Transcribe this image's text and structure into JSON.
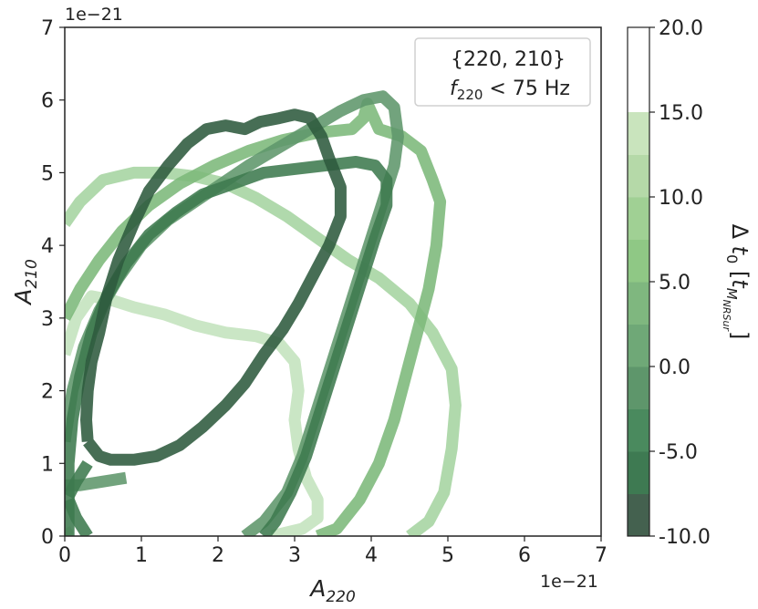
{
  "chart_data": {
    "type": "line",
    "x_label_main": "A",
    "x_label_sub": "220",
    "y_label_main": "A",
    "y_label_sub": "210",
    "x_offset_label": "1e−21",
    "y_offset_label": "1e−21",
    "xlim": [
      0,
      7
    ],
    "ylim": [
      0,
      7
    ],
    "x_ticks": [
      "0",
      "1",
      "2",
      "3",
      "4",
      "5",
      "6",
      "7"
    ],
    "y_ticks": [
      "0",
      "1",
      "2",
      "3",
      "4",
      "5",
      "6",
      "7"
    ],
    "grid": false,
    "annotation": {
      "line1": "{220, 210}",
      "line2_var_main": "f",
      "line2_var_sub": "220",
      "line2_rest": " < 75 Hz",
      "placement": "top-right"
    },
    "colorbar": {
      "label_prefix": "Δ ",
      "label_var_main": "t",
      "label_var_sub": "0",
      "label_unit_main": "t",
      "label_unit_sub": "M",
      "label_unit_subsub": "NRSur",
      "tick_labels": [
        "-10.0",
        "-5.0",
        "0.0",
        "5.0",
        "10.0",
        "15.0",
        "20.0"
      ],
      "tick_values": [
        -10,
        -5,
        0,
        5,
        10,
        15,
        20
      ],
      "levels": [
        -10,
        -7.5,
        -5,
        -2.5,
        0,
        2.5,
        5,
        7.5,
        10,
        12.5,
        15,
        17.5,
        20
      ],
      "colors": [
        "#44614f",
        "#3e7a52",
        "#4a8a5e",
        "#5e966b",
        "#6fa877",
        "#7fb77f",
        "#8fc885",
        "#a0d094",
        "#b5d9a8",
        "#c9e4bd"
      ]
    },
    "series": [
      {
        "delta_t0": -10,
        "color": "#2d5a3d",
        "points": [
          [
            0.3,
            1.3
          ],
          [
            0.28,
            1.6
          ],
          [
            0.3,
            2.0
          ],
          [
            0.35,
            2.4
          ],
          [
            0.45,
            2.8
          ],
          [
            0.55,
            3.3
          ],
          [
            0.7,
            3.8
          ],
          [
            0.9,
            4.3
          ],
          [
            1.1,
            4.75
          ],
          [
            1.35,
            5.1
          ],
          [
            1.6,
            5.4
          ],
          [
            1.85,
            5.6
          ],
          [
            2.1,
            5.65
          ],
          [
            2.35,
            5.6
          ],
          [
            2.55,
            5.7
          ],
          [
            2.8,
            5.75
          ],
          [
            3.0,
            5.8
          ],
          [
            3.2,
            5.75
          ],
          [
            3.35,
            5.5
          ],
          [
            3.45,
            5.2
          ],
          [
            3.6,
            4.8
          ],
          [
            3.6,
            4.4
          ],
          [
            3.45,
            4.0
          ],
          [
            3.25,
            3.6
          ],
          [
            3.05,
            3.2
          ],
          [
            2.85,
            2.85
          ],
          [
            2.6,
            2.5
          ],
          [
            2.35,
            2.1
          ],
          [
            2.1,
            1.8
          ],
          [
            1.8,
            1.5
          ],
          [
            1.5,
            1.25
          ],
          [
            1.2,
            1.1
          ],
          [
            0.9,
            1.05
          ],
          [
            0.6,
            1.05
          ],
          [
            0.45,
            1.1
          ],
          [
            0.3,
            1.3
          ]
        ]
      },
      {
        "delta_t0": -5,
        "color": "#3e7a4f",
        "points": [
          [
            0.05,
            0.0
          ],
          [
            0.05,
            0.5
          ],
          [
            0.05,
            1.0
          ],
          [
            0.1,
            1.6
          ],
          [
            0.2,
            2.2
          ],
          [
            0.35,
            2.8
          ],
          [
            0.55,
            3.3
          ],
          [
            0.8,
            3.75
          ],
          [
            1.1,
            4.15
          ],
          [
            1.45,
            4.45
          ],
          [
            1.8,
            4.7
          ],
          [
            2.2,
            4.85
          ],
          [
            2.6,
            5.0
          ],
          [
            3.0,
            5.05
          ],
          [
            3.4,
            5.1
          ],
          [
            3.8,
            5.15
          ],
          [
            4.05,
            5.1
          ],
          [
            4.2,
            4.9
          ],
          [
            4.2,
            4.55
          ],
          [
            4.05,
            4.1
          ],
          [
            3.9,
            3.6
          ],
          [
            3.75,
            3.1
          ],
          [
            3.6,
            2.6
          ],
          [
            3.45,
            2.1
          ],
          [
            3.3,
            1.6
          ],
          [
            3.15,
            1.1
          ],
          [
            2.95,
            0.6
          ],
          [
            2.75,
            0.2
          ],
          [
            2.6,
            0.0
          ]
        ]
      },
      {
        "delta_t0": -5,
        "color": "#3e7a4f",
        "points": [
          [
            0.05,
            0.55
          ],
          [
            0.15,
            0.75
          ],
          [
            0.3,
            1.0
          ]
        ]
      },
      {
        "delta_t0": -5,
        "color": "#3e7a4f",
        "points": [
          [
            0.05,
            0.5
          ],
          [
            0.15,
            0.25
          ],
          [
            0.3,
            0.0
          ]
        ]
      },
      {
        "delta_t0": 0,
        "color": "#5e966b",
        "points": [
          [
            0.0,
            1.3
          ],
          [
            0.1,
            2.0
          ],
          [
            0.25,
            2.6
          ],
          [
            0.45,
            3.1
          ],
          [
            0.7,
            3.55
          ],
          [
            1.0,
            4.0
          ],
          [
            1.35,
            4.35
          ],
          [
            1.7,
            4.6
          ],
          [
            2.05,
            4.85
          ],
          [
            2.4,
            5.1
          ],
          [
            2.8,
            5.35
          ],
          [
            3.2,
            5.6
          ],
          [
            3.6,
            5.85
          ],
          [
            3.9,
            6.0
          ],
          [
            4.15,
            6.05
          ],
          [
            4.3,
            5.9
          ],
          [
            4.35,
            5.5
          ],
          [
            4.3,
            5.1
          ],
          [
            4.15,
            4.6
          ],
          [
            4.0,
            4.1
          ],
          [
            3.85,
            3.6
          ],
          [
            3.7,
            3.1
          ],
          [
            3.55,
            2.6
          ],
          [
            3.4,
            2.1
          ],
          [
            3.25,
            1.6
          ],
          [
            3.1,
            1.1
          ],
          [
            2.9,
            0.6
          ],
          [
            2.6,
            0.2
          ],
          [
            2.35,
            0.0
          ]
        ]
      },
      {
        "delta_t0": 0,
        "color": "#5e966b",
        "points": [
          [
            0.0,
            0.7
          ],
          [
            0.2,
            0.7
          ],
          [
            0.5,
            0.75
          ],
          [
            0.8,
            0.8
          ]
        ]
      },
      {
        "delta_t0": 5,
        "color": "#7cb87a",
        "points": [
          [
            0.0,
            3.0
          ],
          [
            0.2,
            3.4
          ],
          [
            0.45,
            3.8
          ],
          [
            0.75,
            4.2
          ],
          [
            1.1,
            4.55
          ],
          [
            1.5,
            4.85
          ],
          [
            1.95,
            5.1
          ],
          [
            2.4,
            5.3
          ],
          [
            2.85,
            5.45
          ],
          [
            3.3,
            5.55
          ],
          [
            3.75,
            5.6
          ],
          [
            3.9,
            5.75
          ],
          [
            3.95,
            5.95
          ],
          [
            4.1,
            5.6
          ],
          [
            4.4,
            5.5
          ],
          [
            4.65,
            5.3
          ],
          [
            4.8,
            4.9
          ],
          [
            4.9,
            4.6
          ],
          [
            4.85,
            4.0
          ],
          [
            4.75,
            3.4
          ],
          [
            4.6,
            2.8
          ],
          [
            4.45,
            2.2
          ],
          [
            4.3,
            1.6
          ],
          [
            4.1,
            1.0
          ],
          [
            3.85,
            0.5
          ],
          [
            3.55,
            0.1
          ],
          [
            3.3,
            0.0
          ]
        ]
      },
      {
        "delta_t0": 15,
        "color": "#a5d4a0",
        "points": [
          [
            0.0,
            4.3
          ],
          [
            0.2,
            4.6
          ],
          [
            0.5,
            4.9
          ],
          [
            0.9,
            5.0
          ],
          [
            1.3,
            5.0
          ],
          [
            1.7,
            4.95
          ],
          [
            2.1,
            4.85
          ],
          [
            2.5,
            4.65
          ],
          [
            2.9,
            4.4
          ],
          [
            3.3,
            4.1
          ],
          [
            3.7,
            3.8
          ],
          [
            4.1,
            3.55
          ],
          [
            4.5,
            3.2
          ],
          [
            4.8,
            2.8
          ],
          [
            5.05,
            2.3
          ],
          [
            5.1,
            1.8
          ],
          [
            5.05,
            1.2
          ],
          [
            4.95,
            0.6
          ],
          [
            4.75,
            0.2
          ],
          [
            4.5,
            0.0
          ]
        ]
      },
      {
        "delta_t0": 20,
        "color": "#c3e3bd",
        "points": [
          [
            0.0,
            2.5
          ],
          [
            0.15,
            3.0
          ],
          [
            0.35,
            3.3
          ],
          [
            0.6,
            3.25
          ],
          [
            0.9,
            3.15
          ],
          [
            1.3,
            3.05
          ],
          [
            1.7,
            2.9
          ],
          [
            2.1,
            2.8
          ],
          [
            2.5,
            2.75
          ],
          [
            2.8,
            2.65
          ],
          [
            3.0,
            2.4
          ],
          [
            3.05,
            2.0
          ],
          [
            3.0,
            1.6
          ],
          [
            3.05,
            1.2
          ],
          [
            3.15,
            0.8
          ],
          [
            3.3,
            0.5
          ],
          [
            3.3,
            0.25
          ],
          [
            3.1,
            0.1
          ],
          [
            2.7,
            0.0
          ]
        ]
      },
      {
        "delta_t0": 20,
        "color": "#c3e3bd",
        "points": [
          [
            0.0,
            0.1
          ],
          [
            0.05,
            0.0
          ]
        ]
      }
    ]
  }
}
